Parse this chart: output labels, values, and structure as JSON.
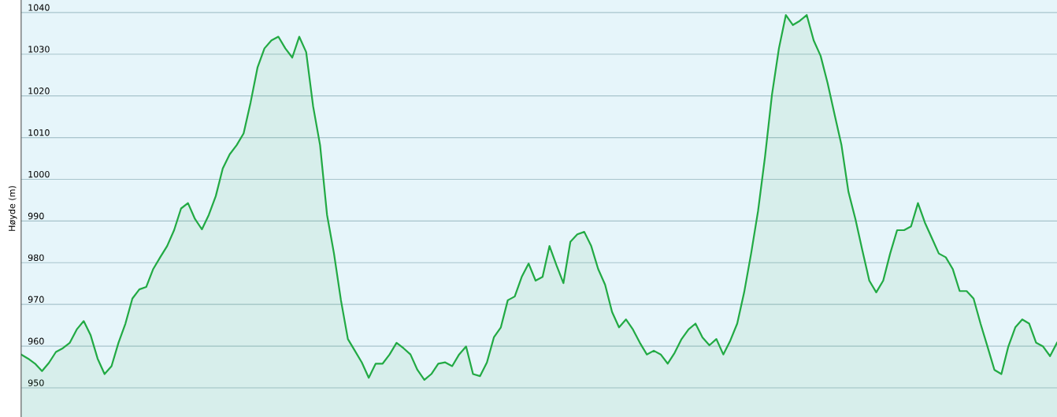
{
  "chart_data": {
    "type": "area",
    "ylabel": "Høyde (m)",
    "ylim": [
      943,
      1043
    ],
    "yticks": [
      950,
      960,
      970,
      980,
      990,
      1000,
      1010,
      1020,
      1030,
      1040
    ],
    "grid": "y",
    "tick_labels": "y",
    "categories": [
      null,
      null,
      null,
      null,
      null,
      null,
      null,
      null,
      null,
      null,
      null,
      null,
      null,
      null,
      null,
      null,
      null,
      null,
      null,
      null,
      null,
      null,
      null,
      null,
      null,
      null,
      null,
      null,
      null,
      null,
      null,
      null,
      null,
      null,
      null,
      null,
      null,
      null,
      null,
      null,
      null,
      null,
      null,
      null,
      null,
      null,
      null,
      null,
      null,
      null,
      null,
      null,
      null,
      null,
      null,
      null,
      null,
      null,
      null,
      null,
      null,
      null,
      null,
      null,
      null,
      null,
      null,
      null,
      null,
      null,
      null,
      null,
      null,
      null,
      null,
      null,
      null,
      null,
      null,
      null,
      null,
      null,
      null,
      null,
      null,
      null,
      null,
      null,
      null,
      null,
      null,
      null,
      null,
      null,
      null,
      null,
      null,
      null,
      null,
      null,
      null,
      null,
      null,
      null,
      null,
      null,
      null,
      null,
      null,
      null,
      null,
      null,
      null,
      null,
      null,
      null,
      null,
      null,
      null,
      null,
      null,
      null,
      null,
      null,
      null,
      null,
      null,
      null,
      null,
      null,
      null,
      null,
      null,
      null,
      null,
      null,
      null,
      null,
      null,
      null,
      null,
      null,
      null,
      null,
      null,
      null,
      null,
      null,
      null,
      null
    ],
    "series": [
      {
        "color": "#22aa44",
        "values": [
          958,
          957,
          955.8,
          954,
          956,
          958.6,
          959.5,
          960.8,
          964,
          966,
          962.6,
          957,
          953.3,
          955.2,
          960.8,
          965.4,
          971.4,
          973.6,
          974.2,
          978.5,
          981.3,
          984,
          987.8,
          993,
          994.3,
          990.5,
          988,
          991.5,
          996,
          1002.6,
          1006,
          1008.2,
          1011,
          1018.4,
          1026.8,
          1031.4,
          1033.3,
          1034.2,
          1031.4,
          1029.2,
          1034.2,
          1030.5,
          1017.5,
          1008.2,
          991.5,
          982.2,
          971,
          961.7,
          958.9,
          956.1,
          952.4,
          955.8,
          955.8,
          958,
          960.8,
          959.5,
          958,
          954.3,
          951.9,
          953.3,
          955.8,
          956.1,
          955.2,
          958,
          959.9,
          953.3,
          952.8,
          956.1,
          962.1,
          964.5,
          971,
          971.9,
          976.6,
          979.8,
          975.7,
          976.6,
          984,
          979.4,
          975.1,
          985,
          986.8,
          987.4,
          984,
          978.5,
          974.7,
          968.2,
          964.5,
          966.4,
          964,
          960.8,
          958,
          958.9,
          958,
          955.8,
          958.4,
          961.7,
          964,
          965.4,
          962.1,
          960.2,
          961.7,
          958,
          961.3,
          965.4,
          972.9,
          982.2,
          992.4,
          1005.4,
          1020.3,
          1031.4,
          1039.4,
          1037,
          1038,
          1039.4,
          1033.3,
          1029.6,
          1023.1,
          1015.6,
          1008.2,
          997,
          990.5,
          983,
          975.7,
          972.9,
          975.7,
          982.2,
          987.8,
          987.8,
          988.7,
          994.3,
          989.6,
          985.9,
          982.2,
          981.3,
          978.5,
          973.2,
          973.2,
          971.4,
          965.4,
          959.9,
          954.3,
          953.3,
          959.9,
          964.5,
          966.4,
          965.4,
          960.8,
          959.9,
          957.6,
          960.8
        ]
      }
    ]
  }
}
